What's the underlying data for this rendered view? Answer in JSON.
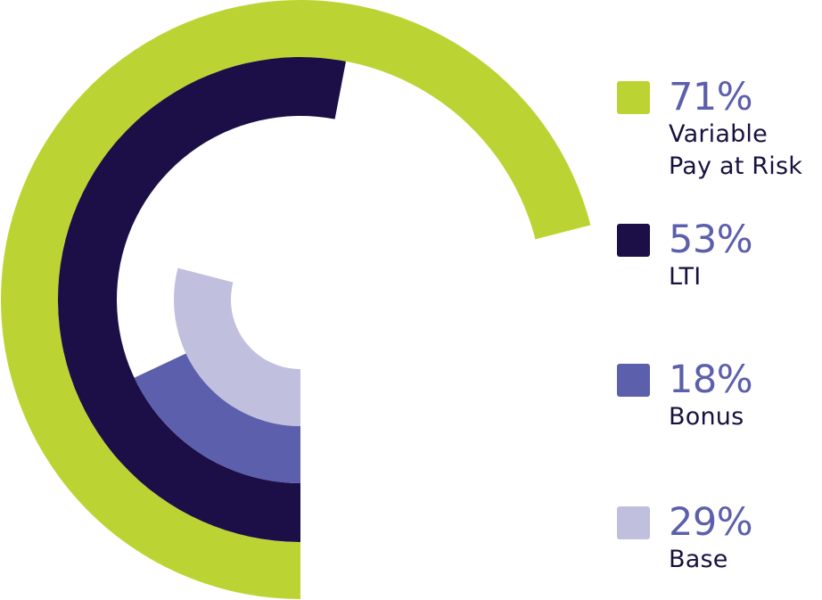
{
  "chart_data": {
    "type": "radial-bar",
    "series": [
      {
        "name": "Variable Pay at Risk",
        "label_lines": [
          "Variable",
          "Pay at Risk"
        ],
        "percent_label": "71%",
        "value": 71,
        "color": "#bcd433"
      },
      {
        "name": "LTI",
        "label_lines": [
          "LTI"
        ],
        "percent_label": "53%",
        "value": 53,
        "color": "#1c0e46"
      },
      {
        "name": "Bonus",
        "label_lines": [
          "Bonus"
        ],
        "percent_label": "18%",
        "value": 18,
        "color": "#5c5fab"
      },
      {
        "name": "Base",
        "label_lines": [
          "Base"
        ],
        "percent_label": "29%",
        "value": 29,
        "color": "#c0bfde"
      }
    ],
    "percent_text_color": "#5c5fab",
    "legend_position": "right"
  }
}
